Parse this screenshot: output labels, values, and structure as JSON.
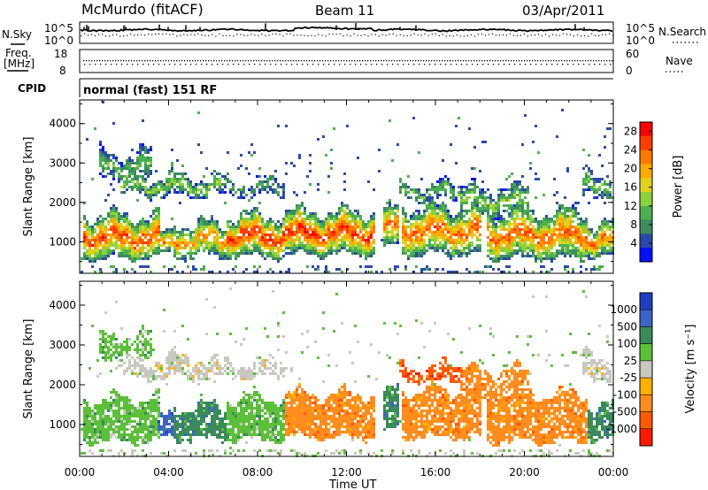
{
  "header": {
    "station": "McMurdo (fitACF)",
    "beam": "Beam 11",
    "date": "03/Apr/2011"
  },
  "noise_panel": {
    "left_label": "N.Sky",
    "right_label": "N.Search",
    "tick_labels": [
      "10^5",
      "10^0"
    ]
  },
  "freq_panel": {
    "left_label_1": "Freq.",
    "left_label_2": "[MHz]",
    "right_label": "Nave",
    "left_ticks": [
      "18",
      "8"
    ],
    "right_ticks": [
      "60",
      "0"
    ]
  },
  "cpid": {
    "label": "CPID",
    "text": "normal (fast) 151 RF"
  },
  "colors": {
    "power": [
      "#0010ff",
      "#2b4aa8",
      "#3d8c5e",
      "#4caf50",
      "#8cd23c",
      "#e0d21e",
      "#ffaa00",
      "#ff7800",
      "#ff3c00",
      "#ff0000"
    ],
    "velocity": [
      "#1f3fbf",
      "#3b63c8",
      "#3a8a5a",
      "#5cbf3a",
      "#c8c8c0",
      "#ffb000",
      "#ff8c1e",
      "#ff5a00",
      "#ff1a00"
    ]
  },
  "chart_data": [
    {
      "type": "heatmap",
      "name": "power",
      "ylabel": "Slant Range [km]",
      "yticks": [
        "1000",
        "2000",
        "3000",
        "4000"
      ],
      "ylim": [
        200,
        4600
      ],
      "xlim": [
        "00:00",
        "24:00"
      ],
      "colorbar": {
        "label": "Power [dB]",
        "ticks": [
          "4",
          "8",
          "12",
          "16",
          "20",
          "24",
          "28"
        ],
        "range": [
          0,
          30
        ]
      }
    },
    {
      "type": "heatmap",
      "name": "velocity",
      "ylabel": "Slant Range [km]",
      "yticks": [
        "1000",
        "2000",
        "3000",
        "4000"
      ],
      "ylim": [
        200,
        4600
      ],
      "xlim": [
        "00:00",
        "24:00"
      ],
      "colorbar": {
        "label": "Velocity [m s⁻¹]",
        "ticks": [
          "1000",
          "500",
          "100",
          "25",
          "-25",
          "-100",
          "-500",
          "-1000"
        ]
      }
    }
  ],
  "xaxis": {
    "ticks": [
      "00:00",
      "04:00",
      "08:00",
      "12:00",
      "16:00",
      "20:00",
      "00:00"
    ],
    "label": "Time UT"
  }
}
